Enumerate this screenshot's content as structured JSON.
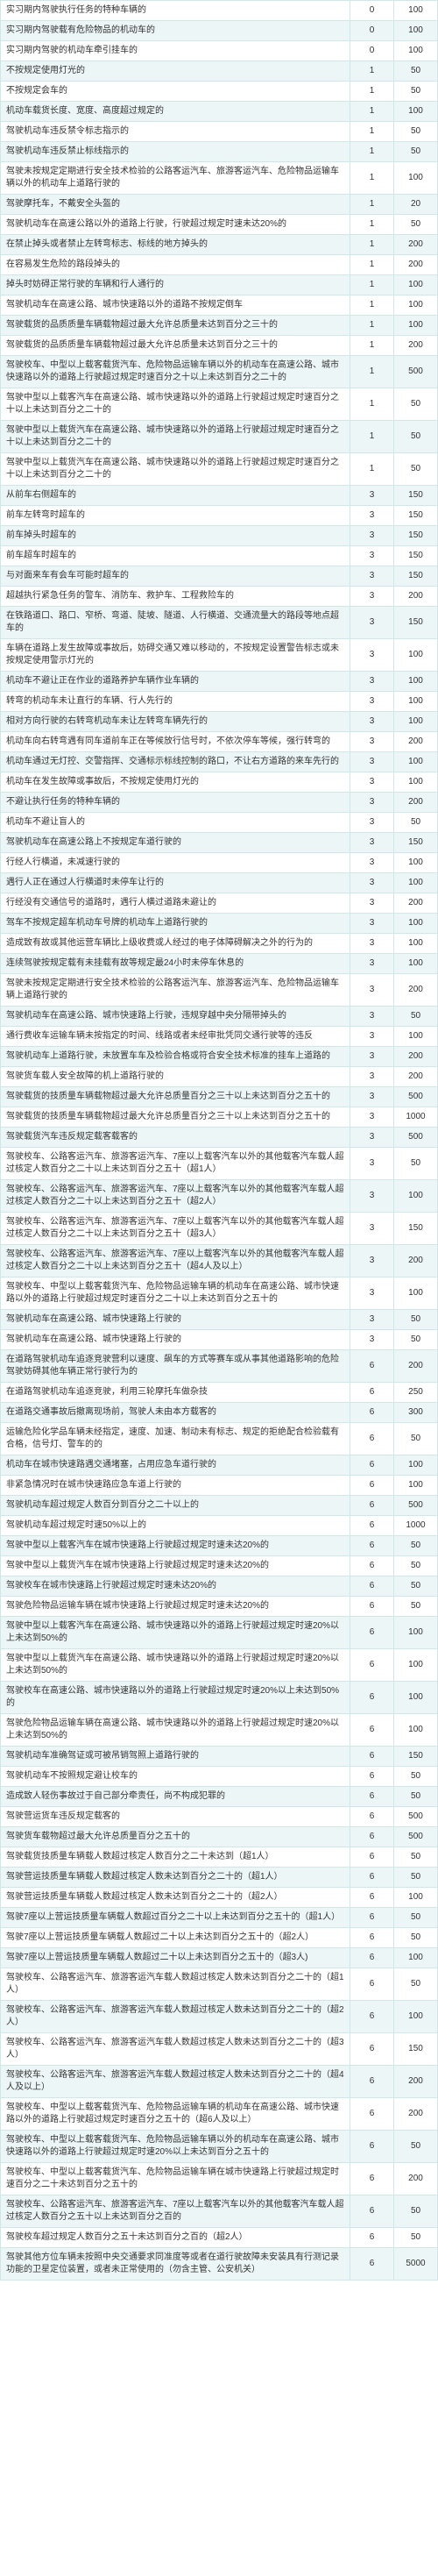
{
  "table": {
    "columns": {
      "desc_width": "auto",
      "col1_width": 50,
      "col2_width": 50
    },
    "styling": {
      "row_even_bg": "#edf6f7",
      "row_odd_bg": "#ffffff",
      "border_color": "#d0e6e8",
      "font_size": 10,
      "text_color": "#333333"
    },
    "rows": [
      {
        "desc": "实习期内驾驶执行任务的特种车辆的",
        "v1": "0",
        "v2": "100"
      },
      {
        "desc": "实习期内驾驶载有危险物品的机动车的",
        "v1": "0",
        "v2": "100"
      },
      {
        "desc": "实习期内驾驶的机动车牵引挂车的",
        "v1": "0",
        "v2": "100"
      },
      {
        "desc": "不按规定使用灯光的",
        "v1": "1",
        "v2": "50"
      },
      {
        "desc": "不按规定会车的",
        "v1": "1",
        "v2": "50"
      },
      {
        "desc": "机动车载货长度、宽度、高度超过规定的",
        "v1": "1",
        "v2": "100"
      },
      {
        "desc": "驾驶机动车违反禁令标志指示的",
        "v1": "1",
        "v2": "50"
      },
      {
        "desc": "驾驶机动车违反禁止标线指示的",
        "v1": "1",
        "v2": "50"
      },
      {
        "desc": "驾驶未按规定定期进行安全技术检验的公路客运汽车、旅游客运汽车、危险物品运输车辆以外的机动车上道路行驶的",
        "v1": "1",
        "v2": "100"
      },
      {
        "desc": "驾驶摩托车，不戴安全头盔的",
        "v1": "1",
        "v2": "20"
      },
      {
        "desc": "驾驶机动车在高速公路以外的道路上行驶，行驶超过规定时速未达20%的",
        "v1": "1",
        "v2": "50"
      },
      {
        "desc": "在禁止掉头或者禁止左转弯标志、标线的地方掉头的",
        "v1": "1",
        "v2": "200"
      },
      {
        "desc": "在容易发生危险的路段掉头的",
        "v1": "1",
        "v2": "200"
      },
      {
        "desc": "掉头时妨碍正常行驶的车辆和行人通行的",
        "v1": "1",
        "v2": "100"
      },
      {
        "desc": "驾驶机动车在高速公路、城市快速路以外的道路不按规定倒车",
        "v1": "1",
        "v2": "100"
      },
      {
        "desc": "驾驶载货的品质质量车辆载物超过最大允许总质量未达到百分之三十的",
        "v1": "1",
        "v2": "100"
      },
      {
        "desc": "驾驶载货的品质质量车辆载物超过最大允许总质量未达到百分之三十的",
        "v1": "1",
        "v2": "200"
      },
      {
        "desc": "驾驶校车、中型以上载客载货汽车、危险物品运输车辆以外的机动车在高速公路、城市快速路以外的道路上行驶超过规定时速百分之十以上未达到百分之二十的",
        "v1": "1",
        "v2": "500"
      },
      {
        "desc": "驾驶中型以上载客汽车在高速公路、城市快速路以外的道路上行驶超过规定时速百分之十以上未达到百分之二十的",
        "v1": "1",
        "v2": "50"
      },
      {
        "desc": "驾驶中型以上载货汽车在高速公路、城市快速路以外的道路上行驶超过规定时速百分之十以上未达到百分之二十的",
        "v1": "1",
        "v2": "50"
      },
      {
        "desc": "驾驶中型以上载货汽车在高速公路、城市快速路以外的道路上行驶超过规定时速百分之十以上未达到百分之二十的",
        "v1": "1",
        "v2": "50"
      },
      {
        "desc": "从前车右侧超车的",
        "v1": "3",
        "v2": "150"
      },
      {
        "desc": "前车左转弯时超车的",
        "v1": "3",
        "v2": "150"
      },
      {
        "desc": "前车掉头时超车的",
        "v1": "3",
        "v2": "150"
      },
      {
        "desc": "前车超车时超车的",
        "v1": "3",
        "v2": "150"
      },
      {
        "desc": "与对面来车有会车可能时超车的",
        "v1": "3",
        "v2": "150"
      },
      {
        "desc": "超越执行紧急任务的警车、消防车、救护车、工程救险车的",
        "v1": "3",
        "v2": "200"
      },
      {
        "desc": "在铁路道口、路口、窄桥、弯道、陡坡、隧道、人行横道、交通流量大的路段等地点超车的",
        "v1": "3",
        "v2": "150"
      },
      {
        "desc": "车辆在道路上发生故障或事故后，妨碍交通又难以移动的，不按规定设置警告标志或未按规定使用警示灯光的",
        "v1": "3",
        "v2": "100"
      },
      {
        "desc": "机动车不避让正在作业的道路养护车辆作业车辆的",
        "v1": "3",
        "v2": "100"
      },
      {
        "desc": "转弯的机动车未让直行的车辆、行人先行的",
        "v1": "3",
        "v2": "100"
      },
      {
        "desc": "相对方向行驶的右转弯机动车未让左转弯车辆先行的",
        "v1": "3",
        "v2": "100"
      },
      {
        "desc": "机动车向右转弯遇有同车道前车正在等候放行信号时，不依次停车等候，强行转弯的",
        "v1": "3",
        "v2": "200"
      },
      {
        "desc": "机动车通过无灯控、交警指挥、交通标示标线控制的路口，不让右方道路的来车先行的",
        "v1": "3",
        "v2": "100"
      },
      {
        "desc": "机动车在发生故障或事故后，不按规定使用灯光的",
        "v1": "3",
        "v2": "100"
      },
      {
        "desc": "不避让执行任务的特种车辆的",
        "v1": "3",
        "v2": "200"
      },
      {
        "desc": "机动车不避让盲人的",
        "v1": "3",
        "v2": "50"
      },
      {
        "desc": "驾驶机动车在高速公路上不按规定车道行驶的",
        "v1": "3",
        "v2": "150"
      },
      {
        "desc": "行经人行横道，未减速行驶的",
        "v1": "3",
        "v2": "100"
      },
      {
        "desc": "遇行人正在通过人行横道时未停车让行的",
        "v1": "3",
        "v2": "100"
      },
      {
        "desc": "行经没有交通信号的道路时，遇行人横过道路未避让的",
        "v1": "3",
        "v2": "200"
      },
      {
        "desc": "驾车不按规定超车机动车号牌的机动车上道路行驶的",
        "v1": "3",
        "v2": "100"
      },
      {
        "desc": "造成致有故或其他运营车辆比上级收费或人经过的电子体障碍解决之外的行为的",
        "v1": "3",
        "v2": "100"
      },
      {
        "desc": "连续驾驶按规定载有未挂载有故等规定最24小时未停车休息的",
        "v1": "3",
        "v2": "100"
      },
      {
        "desc": "驾驶未按规定定期进行安全技术检验的公路客运汽车、旅游客运汽车、危险物品运输车辆上道路行驶的",
        "v1": "3",
        "v2": "200"
      },
      {
        "desc": "驾驶机动车在高速公路、城市快速路上行驶，违规穿越中央分隔带掉头的",
        "v1": "3",
        "v2": "50"
      },
      {
        "desc": "通行费收车运输车辆未按指定的时间、线路或者未经审批凭同交通行驶等的违反",
        "v1": "3",
        "v2": "100"
      },
      {
        "desc": "驾驶机动车上道路行驶，未放置车车及检验合格或符合安全技术标准的挂车上道路的",
        "v1": "3",
        "v2": "200"
      },
      {
        "desc": "驾驶货车载人安全故障的机上道路行驶的",
        "v1": "3",
        "v2": "200"
      },
      {
        "desc": "驾驶载货的技质量车辆载物超过最大允许总质量百分之三十以上未达到百分之五十的",
        "v1": "3",
        "v2": "500"
      },
      {
        "desc": "驾驶载货的技质量车辆载物超过最大允许总质量百分之三十以上未达到百分之五十的",
        "v1": "3",
        "v2": "1000"
      },
      {
        "desc": "驾驶载货汽车违反规定载客载客的",
        "v1": "3",
        "v2": "500"
      },
      {
        "desc": "驾驶校车、公路客运汽车、旅游客运汽车、7座以上载客汽车以外的其他载客汽车载人超过核定人数百分之二十以上未达到百分之五十（超1人）",
        "v1": "3",
        "v2": "50"
      },
      {
        "desc": "驾驶校车、公路客运汽车、旅游客运汽车、7座以上载客汽车以外的其他载客汽车载人超过核定人数百分之二十以上未达到百分之五十（超2人）",
        "v1": "3",
        "v2": "100"
      },
      {
        "desc": "驾驶校车、公路客运汽车、旅游客运汽车、7座以上载客汽车以外的其他载客汽车载人超过核定人数百分之二十以上未达到百分之五十（超3人）",
        "v1": "3",
        "v2": "150"
      },
      {
        "desc": "驾驶校车、公路客运汽车、旅游客运汽车、7座以上载客汽车以外的其他载客汽车载人超过核定人数百分之二十以上未达到百分之五十（超4人及以上）",
        "v1": "3",
        "v2": "200"
      },
      {
        "desc": "驾驶校车、中型以上载客载货汽车、危险物品运输车辆的机动车在高速公路、城市快速路以外的道路上行驶超过规定时速百分之二十以上未达到百分之五十的",
        "v1": "3",
        "v2": "100"
      },
      {
        "desc": "驾驶机动车在高速公路、城市快速路上行驶的",
        "v1": "3",
        "v2": "50"
      },
      {
        "desc": "驾驶机动车在高速公路、城市快速路上行驶的",
        "v1": "3",
        "v2": "50"
      },
      {
        "desc": "在道路驾驶机动车追逐竞驶营利以速度、飙车的方式等赛车或从事其他道路影响的危险驾驶妨碍其他车辆正常行驶行为的",
        "v1": "6",
        "v2": "200"
      },
      {
        "desc": "在道路驾驶机动车追逐竞驶，利用三轮摩托车做杂技",
        "v1": "6",
        "v2": "250"
      },
      {
        "desc": "在道路交通事故后撤离现场前，驾驶人未由本方载客的",
        "v1": "6",
        "v2": "300"
      },
      {
        "desc": "运输危险化学品车辆未经指定，速度、加速、制动未有标志、规定的拒绝配合检验载有合格，信号灯、警车的的",
        "v1": "6",
        "v2": "50"
      },
      {
        "desc": "机动车在城市快速路遇交通堵塞，占用应急车道行驶的",
        "v1": "6",
        "v2": "100"
      },
      {
        "desc": "非紧急情况时在城市快速路应急车道上行驶的",
        "v1": "6",
        "v2": "100"
      },
      {
        "desc": "驾驶机动车超过规定人数百分到百分之二十以上的",
        "v1": "6",
        "v2": "500"
      },
      {
        "desc": "驾驶机动车超过规定时速50%以上的",
        "v1": "6",
        "v2": "1000"
      },
      {
        "desc": "驾驶中型以上载客汽车在城市快速路上行驶超过规定时速未达20%的",
        "v1": "6",
        "v2": "50"
      },
      {
        "desc": "驾驶中型以上载货汽车在城市快速路上行驶超过规定时速未达20%的",
        "v1": "6",
        "v2": "50"
      },
      {
        "desc": "驾驶校车在城市快速路上行驶超过规定时速未达20%的",
        "v1": "6",
        "v2": "50"
      },
      {
        "desc": "驾驶危险物品运输车辆在城市快速路上行驶超过规定时速未达20%的",
        "v1": "6",
        "v2": "50"
      },
      {
        "desc": "驾驶中型以上载客汽车在高速公路、城市快速路以外的道路上行驶超过规定时速20%以上未达到50%的",
        "v1": "6",
        "v2": "100"
      },
      {
        "desc": "驾驶中型以上载货汽车在高速公路、城市快速路以外的道路上行驶超过规定时速20%以上未达到50%的",
        "v1": "6",
        "v2": "100"
      },
      {
        "desc": "驾驶校车在高速公路、城市快速路以外的道路上行驶超过规定时速20%以上未达到50%的",
        "v1": "6",
        "v2": "100"
      },
      {
        "desc": "驾驶危险物品运输车辆在高速公路、城市快速路以外的道路上行驶超过规定时速20%以上未达到50%的",
        "v1": "6",
        "v2": "100"
      },
      {
        "desc": "驾驶机动车准确驾证或可被吊销驾照上道路行驶的",
        "v1": "6",
        "v2": "150"
      },
      {
        "desc": "驾驶机动车不按照规定避让校车的",
        "v1": "6",
        "v2": "50"
      },
      {
        "desc": "造成致人轻伤事故过于自己部分牵责任，尚不构成犯罪的",
        "v1": "6",
        "v2": "50"
      },
      {
        "desc": "驾驶营运货车违反规定载客的",
        "v1": "6",
        "v2": "500"
      },
      {
        "desc": "驾驶货车载物超过最大允许总质量百分之五十的",
        "v1": "6",
        "v2": "500"
      },
      {
        "desc": "驾驶载货技质量车辆载人数超过核定人数百分之二十未达到（超1人）",
        "v1": "6",
        "v2": "50"
      },
      {
        "desc": "驾驶营运技质量车辆载人数超过核定人数未达到百分之二十的（超1人）",
        "v1": "6",
        "v2": "50"
      },
      {
        "desc": "驾驶营运技质量车辆载人数超过核定人数未达到百分之二十的（超2人）",
        "v1": "6",
        "v2": "100"
      },
      {
        "desc": "驾驶7座以上营运技质量车辆载人数超过百分之二十以上未达到百分之五十的（超1人）",
        "v1": "6",
        "v2": "50"
      },
      {
        "desc": "驾驶7座以上营运技质量车辆载人数超过二十以上未达到百分之五十的（超2人）",
        "v1": "6",
        "v2": "50"
      },
      {
        "desc": "驾驶7座以上营运技质量车辆载人数超过二十以上未达到百分之五十的（超3人)",
        "v1": "6",
        "v2": "100"
      },
      {
        "desc": "驾驶校车、公路客运汽车、旅游客运汽车载人数超过核定人数未达到百分之二十的（超1人）",
        "v1": "6",
        "v2": "50"
      },
      {
        "desc": "驾驶校车、公路客运汽车、旅游客运汽车载人数超过核定人数未达到百分之二十的（超2人）",
        "v1": "6",
        "v2": "100"
      },
      {
        "desc": "驾驶校车、公路客运汽车、旅游客运汽车载人数超过核定人数未达到百分之二十的（超3人）",
        "v1": "6",
        "v2": "150"
      },
      {
        "desc": "驾驶校车、公路客运汽车、旅游客运汽车载人数超过核定人数未达到百分之二十的（超4人及以上）",
        "v1": "6",
        "v2": "200"
      },
      {
        "desc": "驾驶校车、中型以上载客载货汽车、危险物品运输车辆的机动车在高速公路、城市快速路以外的道路上行驶超过规定时速百分之五十的（超6人及以上）",
        "v1": "6",
        "v2": "200"
      },
      {
        "desc": "驾驶校车、中型以上载客载货汽车、危险物品运输车辆以外的机动车在高速公路、城市快速路以外的道路上行驶超过规定时速20%以上未达到百分之五十的",
        "v1": "6",
        "v2": "50"
      },
      {
        "desc": "驾驶校车、中型以上载客载货汽车、危险物品运输车辆在城市快速路上行驶超过规定时速百分之二十未达到百分之五十的",
        "v1": "6",
        "v2": "200"
      },
      {
        "desc": "驾驶校车、公路客运汽车、旅游客运汽车、7座以上载客汽车以外的其他载客汽车载人超过核定人数百分之五十以上未达到百分之百的",
        "v1": "6",
        "v2": "50"
      },
      {
        "desc": "驾驶校车超过规定人数百分之五十未达到百分之百的（超2人）",
        "v1": "6",
        "v2": "50"
      },
      {
        "desc": "驾驶其他方位车辆未按照中央交通要求同准度等或者在道行驶故障未安装具有行测记录功能的卫星定位装置，或者未正常使用的（勿含主管、公安机关）",
        "v1": "6",
        "v2": "5000"
      }
    ]
  }
}
